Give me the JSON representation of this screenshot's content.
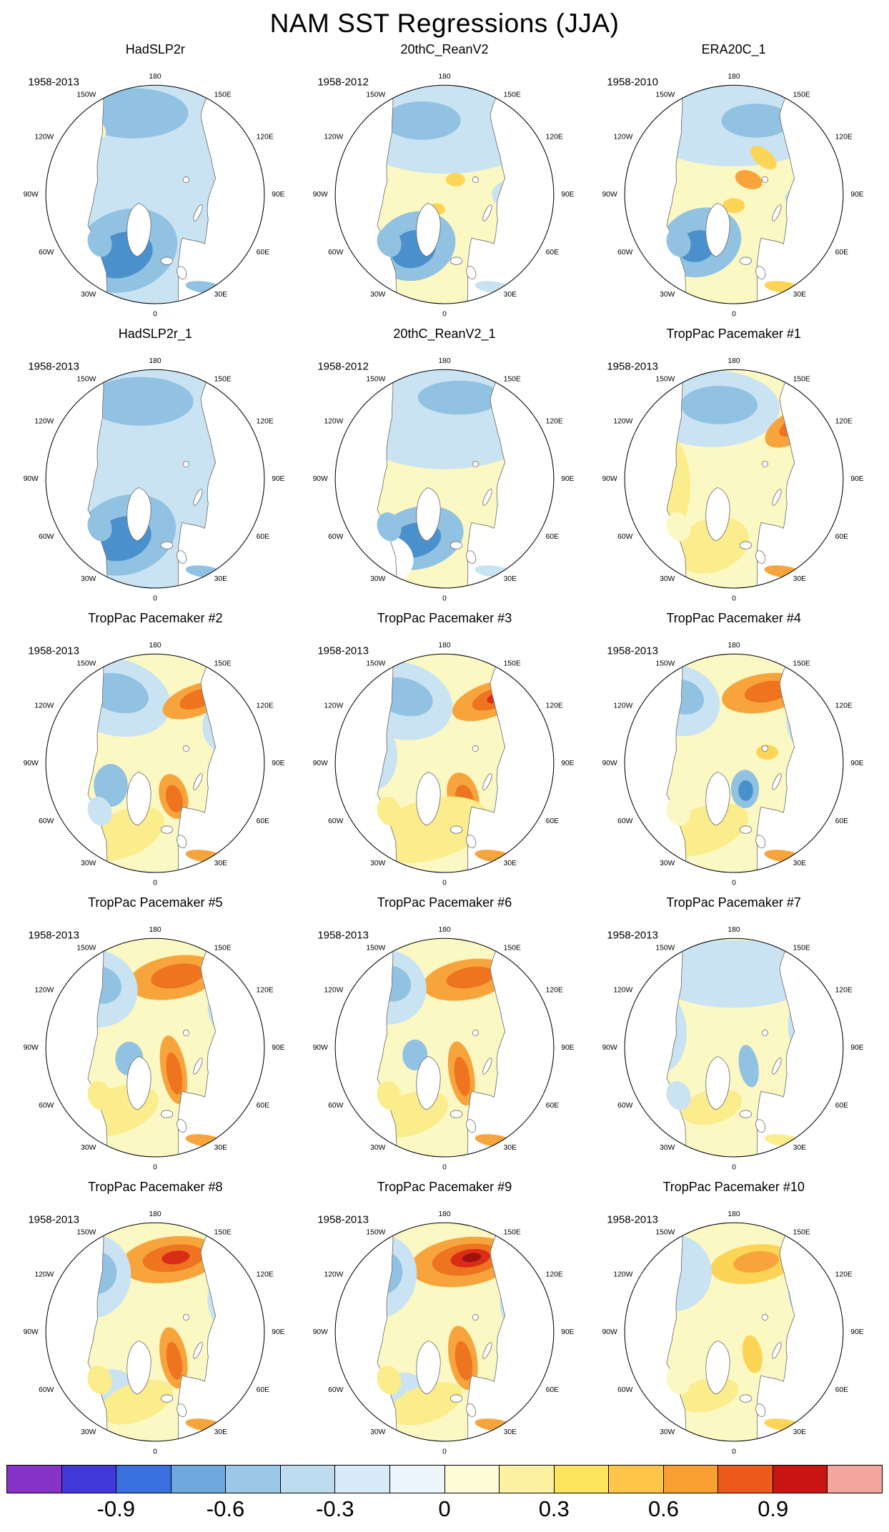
{
  "chart_data": {
    "type": "heatmap",
    "title": "NAM SST Regressions (JJA)",
    "subtitle": "",
    "layout": "5x3 grid of north polar stereographic map panels with shared bottom colorbar",
    "projection": "north-polar-stereographic",
    "panels": [
      {
        "title": "HadSLP2r",
        "period": "1958-2013",
        "summary": "weak negative regression over most ocean; strongest negative in subpolar North Atlantic"
      },
      {
        "title": "20thC_ReanV2",
        "period": "1958-2012",
        "summary": "negative North Pacific and subpolar North Atlantic; weak positive patches along Arctic margin"
      },
      {
        "title": "ERA20C_1",
        "period": "1958-2010",
        "summary": "negative North Pacific and North Atlantic; small positive patches in Arctic shelf seas"
      },
      {
        "title": "HadSLP2r_1",
        "period": "1958-2013",
        "summary": "broad weak negative pattern; strongest negative subpolar North Atlantic"
      },
      {
        "title": "20thC_ReanV2_1",
        "period": "1958-2012",
        "summary": "negative North Pacific and North Atlantic; weak positive/blank sector at lower left"
      },
      {
        "title": "TropPac Pacemaker #1",
        "period": "1958-2013",
        "summary": "negative central North Pacific; positive Okhotsk/Siberian coast and Mediterranean"
      },
      {
        "title": "TropPac Pacemaker #2",
        "period": "1958-2013",
        "summary": "negative North Pacific; positive Okhotsk and Nordic seas; weak positive Atlantic"
      },
      {
        "title": "TropPac Pacemaker #3",
        "period": "1958-2013",
        "summary": "strong positive Okhotsk maximum; positive Nordic seas and Europe; negative North Pacific"
      },
      {
        "title": "TropPac Pacemaker #4",
        "period": "1958-2013",
        "summary": "positive Bering/Okhotsk band; negative Pacific flanks; small negative Nordic seas"
      },
      {
        "title": "TropPac Pacemaker #5",
        "period": "1958-2013",
        "summary": "strong positive Bering band; positive Nordic/Barents streak; negative Pacific flanks"
      },
      {
        "title": "TropPac Pacemaker #6",
        "period": "1958-2013",
        "summary": "positive Bering band and Nordic streak; negative Pacific flanks"
      },
      {
        "title": "TropPac Pacemaker #7",
        "period": "1958-2013",
        "summary": "weak pattern; light negative Pacific and flanks; faint positives elsewhere"
      },
      {
        "title": "TropPac Pacemaker #8",
        "period": "1958-2013",
        "summary": "strong positive Bering/Okhotsk core; positive Nordic streak; negative flanks"
      },
      {
        "title": "TropPac Pacemaker #9",
        "period": "1958-2013",
        "summary": "strongest positive Bering/Okhotsk core (red); positive Nordic streak; negative flanks"
      },
      {
        "title": "TropPac Pacemaker #10",
        "period": "1958-2013",
        "summary": "moderate positive Bering band; weak positives elsewhere; light negative flanks"
      }
    ],
    "longitude_labels": [
      "180",
      "150E",
      "120E",
      "90E",
      "60E",
      "30E",
      "0",
      "30W",
      "60W",
      "90W",
      "120W",
      "150W"
    ],
    "colorbar": {
      "ticks": [
        "-0.9",
        "-0.6",
        "-0.3",
        "0",
        "0.3",
        "0.6",
        "0.9"
      ],
      "tick_values": [
        -0.9,
        -0.6,
        -0.3,
        0,
        0.3,
        0.6,
        0.9
      ],
      "range": [
        -1.2,
        1.2
      ],
      "segment_colors": [
        "#8632c8",
        "#4038d8",
        "#3a6fde",
        "#6ea8de",
        "#9cc8e8",
        "#bddcf0",
        "#d8ebf8",
        "#edf6fc",
        "#fffcd8",
        "#fdf2a2",
        "#fde55f",
        "#fdc64a",
        "#f99f32",
        "#ee5a1c",
        "#c91612",
        "#f4a59d"
      ]
    }
  }
}
